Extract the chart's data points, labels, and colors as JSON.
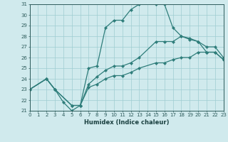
{
  "xlabel": "Humidex (Indice chaleur)",
  "xlim": [
    0,
    23
  ],
  "ylim": [
    21,
    31
  ],
  "xticks": [
    0,
    1,
    2,
    3,
    4,
    5,
    6,
    7,
    8,
    9,
    10,
    11,
    12,
    13,
    14,
    15,
    16,
    17,
    18,
    19,
    20,
    21,
    22,
    23
  ],
  "yticks": [
    21,
    22,
    23,
    24,
    25,
    26,
    27,
    28,
    29,
    30,
    31
  ],
  "bg_color": "#d0eaed",
  "line_color": "#2e7d7a",
  "grid_color": "#9ecdd1",
  "line1_x": [
    0,
    2,
    3,
    4,
    5,
    6,
    7,
    8,
    9,
    10,
    11,
    12,
    13,
    15,
    16,
    17,
    18,
    19,
    20,
    21,
    22,
    23
  ],
  "line1_y": [
    23,
    24,
    23,
    21.8,
    21,
    21.5,
    25,
    25.2,
    28.8,
    29.5,
    29.5,
    30.5,
    31,
    31,
    31,
    28.8,
    28,
    27.7,
    27.5,
    26.5,
    26.5,
    25.8
  ],
  "line2_x": [
    0,
    2,
    3,
    5,
    6,
    7,
    8,
    9,
    10,
    11,
    12,
    13,
    15,
    16,
    17,
    18,
    19,
    20,
    21,
    22,
    23
  ],
  "line2_y": [
    23,
    24,
    23,
    21.5,
    21.5,
    23.5,
    24.2,
    24.8,
    25.2,
    25.2,
    25.5,
    26,
    27.5,
    27.5,
    27.5,
    28,
    27.8,
    27.5,
    27,
    27,
    26
  ],
  "line3_x": [
    0,
    2,
    3,
    5,
    6,
    7,
    8,
    9,
    10,
    11,
    12,
    13,
    15,
    16,
    17,
    18,
    19,
    20,
    21,
    22,
    23
  ],
  "line3_y": [
    23,
    24,
    23,
    21.5,
    21.5,
    23.2,
    23.5,
    24,
    24.3,
    24.3,
    24.6,
    25,
    25.5,
    25.5,
    25.8,
    26,
    26,
    26.5,
    26.5,
    26.5,
    25.8
  ]
}
